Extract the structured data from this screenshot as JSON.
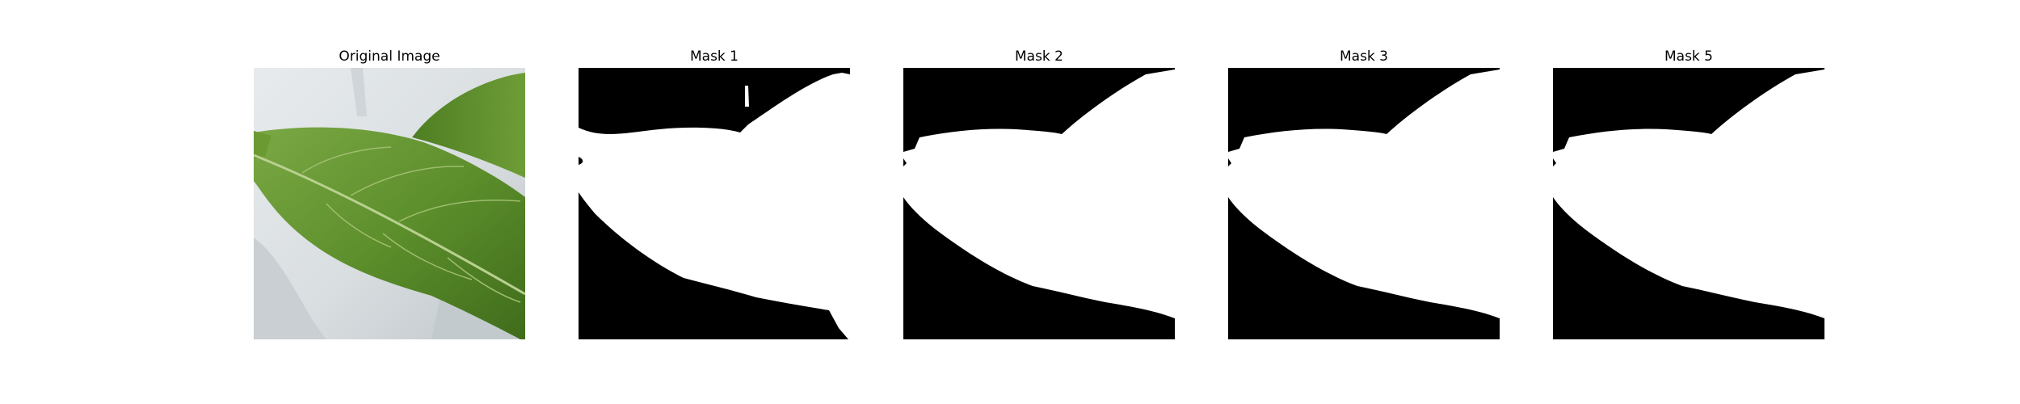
{
  "figure": {
    "panels": [
      {
        "title": "Original Image"
      },
      {
        "title": "Mask 1"
      },
      {
        "title": "Mask 2"
      },
      {
        "title": "Mask 3"
      },
      {
        "title": "Mask 5"
      }
    ]
  },
  "colors": {
    "mask_background": "#000000",
    "mask_foreground": "#ffffff",
    "leaf_main": "#5f8f2f",
    "leaf_dark": "#3f6b1e",
    "leaf_vein": "#b7cf8a",
    "background_light": "#dfe3e6",
    "background_shadow": "#c6ccd0"
  }
}
